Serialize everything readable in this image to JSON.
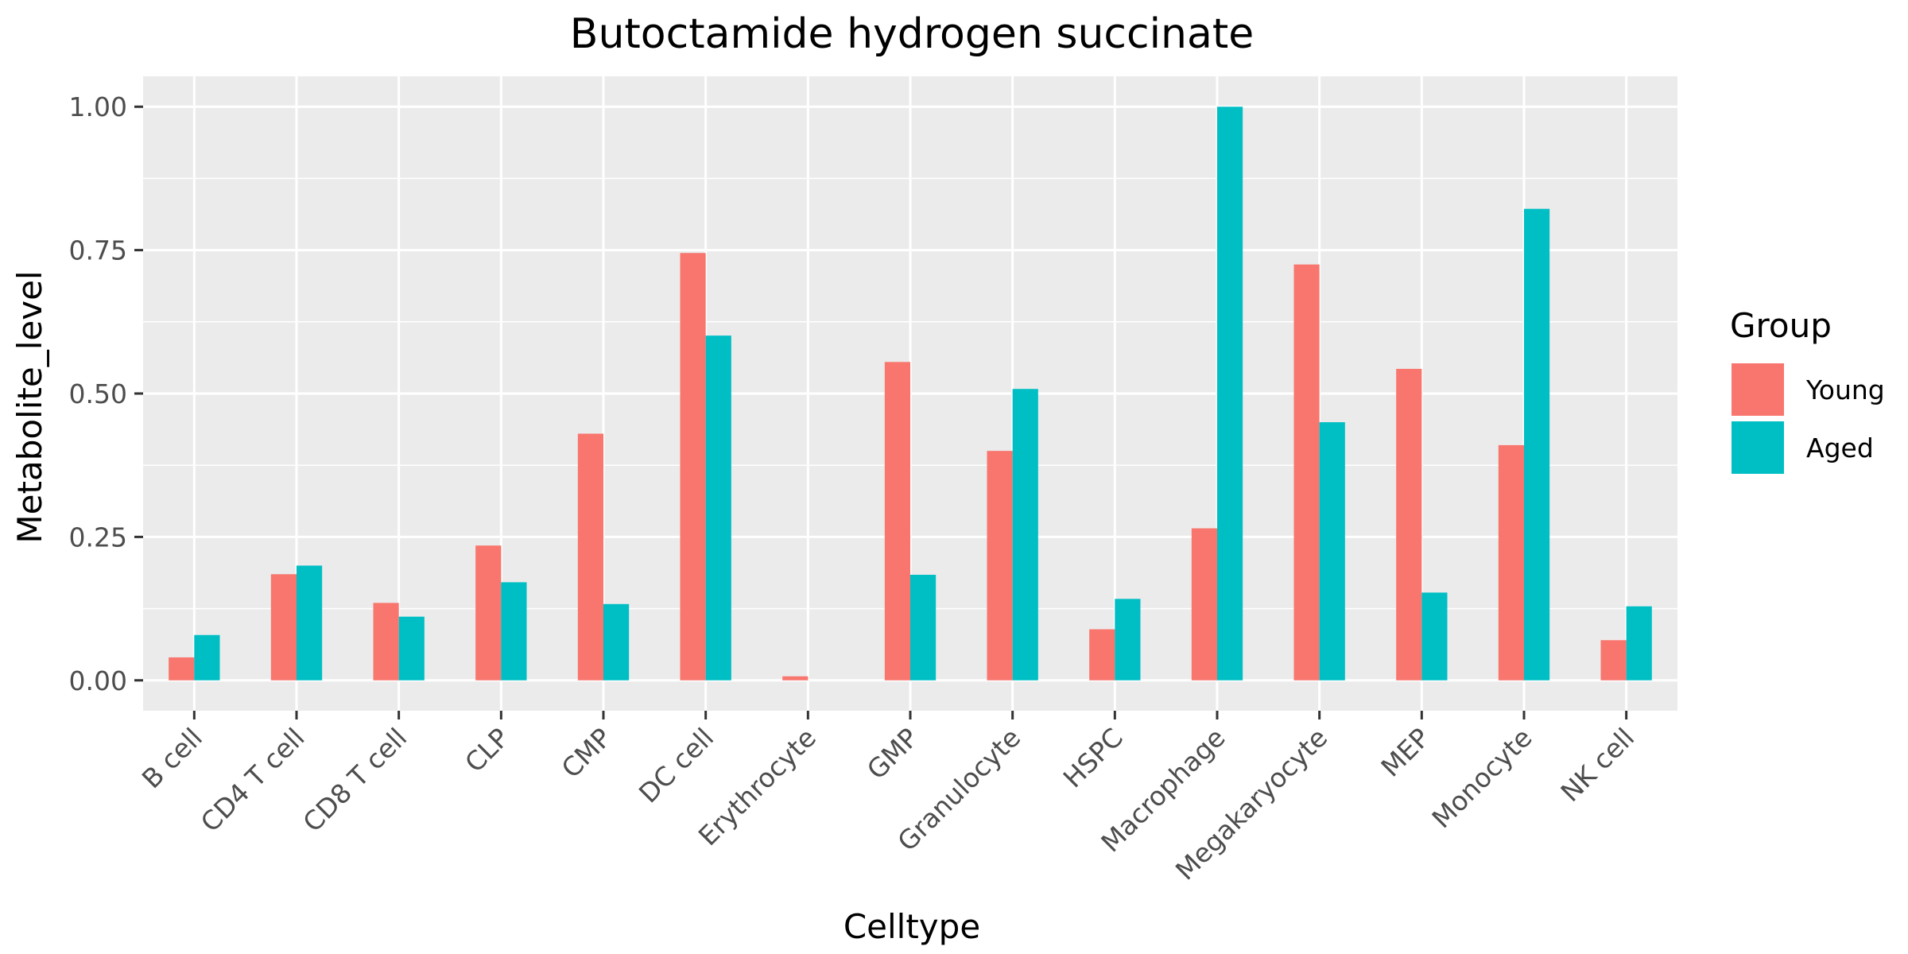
{
  "chart_data": {
    "type": "bar",
    "title": "Butoctamide hydrogen succinate",
    "xlabel": "Celltype",
    "ylabel": "Metabolite_level",
    "categories": [
      "B cell",
      "CD4 T cell",
      "CD8 T cell",
      "CLP",
      "CMP",
      "DC cell",
      "Erythrocyte",
      "GMP",
      "Granulocyte",
      "HSPC",
      "Macrophage",
      "Megakaryocyte",
      "MEP",
      "Monocyte",
      "NK cell"
    ],
    "series": [
      {
        "name": "Young",
        "color": "#F8766D",
        "values": [
          0.04,
          0.185,
          0.135,
          0.235,
          0.43,
          0.745,
          0.007,
          0.555,
          0.4,
          0.089,
          0.265,
          0.725,
          0.543,
          0.41,
          0.07
        ]
      },
      {
        "name": "Aged",
        "color": "#00BFC4",
        "values": [
          0.079,
          0.2,
          0.111,
          0.171,
          0.133,
          0.601,
          0.0,
          0.184,
          0.508,
          0.142,
          1.0,
          0.45,
          0.153,
          0.822,
          0.129
        ]
      }
    ],
    "ylim": [
      -0.053,
      1.053
    ],
    "yticks": [
      0.0,
      0.25,
      0.5,
      0.75,
      1.0
    ],
    "ytick_labels": [
      "0.00",
      "0.25",
      "0.50",
      "0.75",
      "1.00"
    ],
    "grid": true,
    "legend": {
      "title": "Group",
      "position": "right"
    },
    "panel_background": "#EBEBEB",
    "grid_color": "#FFFFFF"
  }
}
